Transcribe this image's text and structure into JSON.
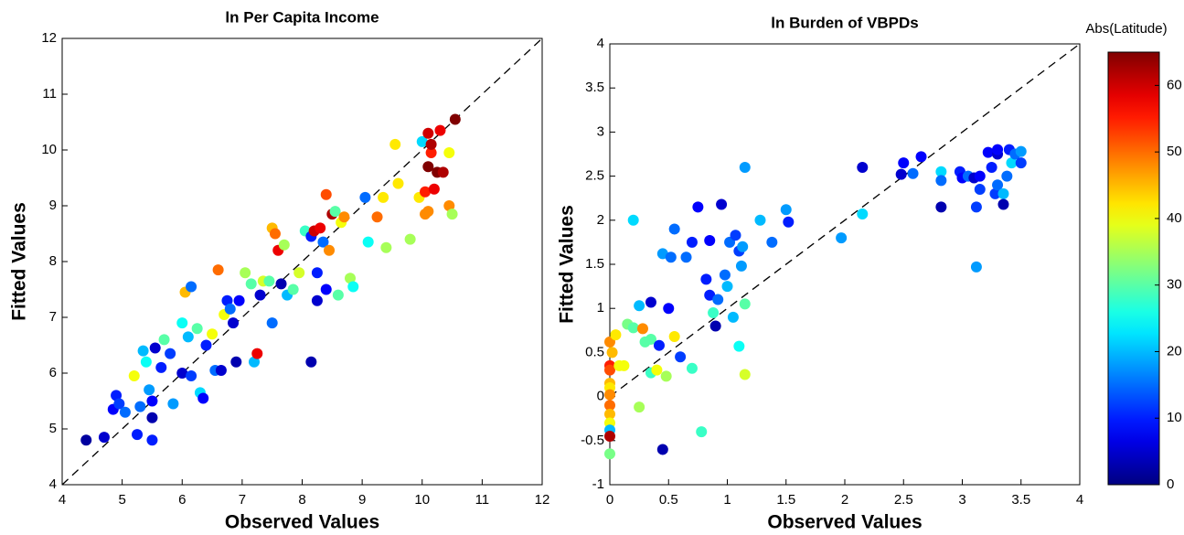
{
  "chart_data": [
    {
      "type": "scatter",
      "title": "ln Per Capita Income",
      "x_label": "Observed Values",
      "y_label": "Fitted Values",
      "xlim": [
        4,
        12
      ],
      "ylim": [
        4,
        12
      ],
      "xticks": [
        4,
        5,
        6,
        7,
        8,
        9,
        10,
        11,
        12
      ],
      "yticks": [
        4,
        5,
        6,
        7,
        8,
        9,
        10,
        11,
        12
      ],
      "identity_line": true,
      "x": [
        4.4,
        4.7,
        4.85,
        4.9,
        4.95,
        5.05,
        5.2,
        5.25,
        5.3,
        5.35,
        5.4,
        5.45,
        5.5,
        5.5,
        5.55,
        5.5,
        5.65,
        5.7,
        5.8,
        5.85,
        6.0,
        6.0,
        6.05,
        6.1,
        6.15,
        6.15,
        6.25,
        6.3,
        6.35,
        6.4,
        6.5,
        6.55,
        6.6,
        6.65,
        6.7,
        6.75,
        6.8,
        6.85,
        6.9,
        6.95,
        7.05,
        7.15,
        7.2,
        7.25,
        7.3,
        7.35,
        7.45,
        7.5,
        7.5,
        7.55,
        7.6,
        7.65,
        7.7,
        7.75,
        7.85,
        7.95,
        8.05,
        8.15,
        8.15,
        8.2,
        8.25,
        8.25,
        8.3,
        8.35,
        8.4,
        8.4,
        8.45,
        8.5,
        8.55,
        8.6,
        8.65,
        8.7,
        8.8,
        8.85,
        9.05,
        9.1,
        9.25,
        9.35,
        9.4,
        9.55,
        9.6,
        9.8,
        9.95,
        10.0,
        10.05,
        10.05,
        10.1,
        10.1,
        10.15,
        10.2,
        10.25,
        10.3,
        10.35,
        10.45,
        10.45,
        10.5,
        10.55,
        10.1,
        10.15
      ],
      "values": [
        4.8,
        4.85,
        5.35,
        5.6,
        5.45,
        5.3,
        5.95,
        4.9,
        5.4,
        6.4,
        6.2,
        5.7,
        5.5,
        4.8,
        6.45,
        5.2,
        6.1,
        6.6,
        6.35,
        5.45,
        6.0,
        6.9,
        7.45,
        6.65,
        7.55,
        5.95,
        6.8,
        5.65,
        5.55,
        6.5,
        6.7,
        6.05,
        7.85,
        6.05,
        7.05,
        7.3,
        7.15,
        6.9,
        6.2,
        7.3,
        7.8,
        7.6,
        6.2,
        6.35,
        7.4,
        7.65,
        7.65,
        8.6,
        6.9,
        8.5,
        8.2,
        7.6,
        8.3,
        7.4,
        7.5,
        7.8,
        8.55,
        8.45,
        6.2,
        8.55,
        7.3,
        7.8,
        8.6,
        8.35,
        7.5,
        9.2,
        8.2,
        8.85,
        8.9,
        7.4,
        8.7,
        8.8,
        7.7,
        7.55,
        9.15,
        8.35,
        8.8,
        9.15,
        8.25,
        10.1,
        9.4,
        8.4,
        9.15,
        10.15,
        8.85,
        9.25,
        10.3,
        8.9,
        9.95,
        9.3,
        9.6,
        10.35,
        9.6,
        9.0,
        9.95,
        8.85,
        10.55,
        9.7,
        10.1
      ],
      "color_values": [
        2,
        5,
        8,
        10,
        12,
        15,
        40,
        10,
        15,
        20,
        25,
        18,
        8,
        10,
        5,
        3,
        10,
        30,
        12,
        18,
        5,
        25,
        45,
        20,
        15,
        12,
        30,
        22,
        8,
        10,
        40,
        15,
        50,
        5,
        40,
        10,
        15,
        5,
        3,
        8,
        35,
        30,
        20,
        58,
        5,
        38,
        30,
        45,
        15,
        50,
        58,
        3,
        35,
        20,
        30,
        38,
        28,
        10,
        3,
        60,
        5,
        10,
        58,
        15,
        8,
        52,
        48,
        62,
        30,
        30,
        40,
        48,
        35,
        25,
        15,
        25,
        50,
        42,
        35,
        42,
        42,
        35,
        42,
        22,
        48,
        55,
        60,
        48,
        55,
        58,
        65,
        58,
        62,
        48,
        40,
        35,
        65,
        65,
        62
      ]
    },
    {
      "type": "scatter",
      "title": "ln Burden of VBPDs",
      "x_label": "Observed Values",
      "y_label": "Fitted Values",
      "xlim": [
        0,
        4
      ],
      "ylim": [
        -1,
        4
      ],
      "xticks": [
        0,
        0.5,
        1,
        1.5,
        2,
        2.5,
        3,
        3.5,
        4
      ],
      "yticks": [
        -1,
        -0.5,
        0,
        0.5,
        1,
        1.5,
        2,
        2.5,
        3,
        3.5,
        4
      ],
      "identity_line": true,
      "x": [
        0,
        0,
        0,
        0,
        0,
        0,
        0,
        0,
        0,
        0,
        0,
        0,
        0.02,
        0.05,
        0.08,
        0.12,
        0.15,
        0.2,
        0.2,
        0.25,
        0.25,
        0.28,
        0.3,
        0.35,
        0.35,
        0.35,
        0.4,
        0.42,
        0.45,
        0.45,
        0.48,
        0.5,
        0.52,
        0.55,
        0.55,
        0.6,
        0.65,
        0.7,
        0.7,
        0.75,
        0.78,
        0.82,
        0.85,
        0.85,
        0.88,
        0.9,
        0.92,
        0.95,
        0.98,
        1.0,
        1.02,
        1.05,
        1.07,
        1.1,
        1.1,
        1.12,
        1.13,
        1.15,
        1.15,
        1.15,
        1.28,
        1.38,
        1.5,
        1.52,
        1.97,
        2.15,
        2.15,
        2.48,
        2.5,
        2.58,
        2.65,
        2.82,
        2.82,
        2.82,
        2.98,
        3.0,
        3.05,
        3.1,
        3.12,
        3.12,
        3.15,
        3.15,
        3.22,
        3.25,
        3.28,
        3.3,
        3.3,
        3.35,
        3.35,
        3.38,
        3.4,
        3.42,
        3.45,
        3.5,
        3.5,
        3.3
      ],
      "values": [
        0.62,
        0.35,
        0.3,
        0.15,
        0.1,
        0.02,
        -0.1,
        -0.2,
        -0.3,
        -0.38,
        -0.45,
        -0.65,
        0.5,
        0.7,
        0.35,
        0.35,
        0.82,
        0.78,
        2.0,
        1.03,
        -0.12,
        0.77,
        0.62,
        0.65,
        0.27,
        1.07,
        0.3,
        0.58,
        1.62,
        -0.6,
        0.23,
        1.0,
        1.58,
        0.68,
        1.9,
        0.45,
        1.58,
        1.75,
        0.32,
        2.15,
        -0.4,
        1.33,
        1.77,
        1.15,
        0.95,
        0.8,
        1.1,
        2.18,
        1.38,
        1.25,
        1.75,
        0.9,
        1.83,
        0.57,
        1.65,
        1.48,
        1.7,
        0.25,
        2.6,
        1.05,
        2.0,
        1.75,
        2.12,
        1.98,
        1.8,
        2.07,
        2.6,
        2.52,
        2.65,
        2.53,
        2.72,
        2.55,
        2.15,
        2.45,
        2.55,
        2.48,
        2.5,
        2.48,
        2.15,
        1.47,
        2.35,
        2.5,
        2.77,
        2.6,
        2.3,
        2.75,
        2.4,
        2.3,
        2.18,
        2.5,
        2.8,
        2.65,
        2.75,
        2.78,
        2.65,
        2.8
      ],
      "color_values": [
        48,
        55,
        52,
        45,
        42,
        48,
        50,
        45,
        40,
        20,
        62,
        32,
        45,
        42,
        40,
        40,
        32,
        30,
        22,
        20,
        35,
        48,
        30,
        30,
        28,
        5,
        40,
        10,
        18,
        3,
        35,
        8,
        15,
        42,
        15,
        12,
        15,
        10,
        28,
        8,
        28,
        10,
        8,
        10,
        28,
        3,
        15,
        5,
        15,
        20,
        15,
        20,
        12,
        25,
        12,
        18,
        18,
        38,
        18,
        30,
        20,
        15,
        18,
        10,
        18,
        22,
        5,
        5,
        8,
        15,
        8,
        22,
        3,
        15,
        10,
        8,
        15,
        5,
        12,
        18,
        12,
        8,
        8,
        10,
        12,
        5,
        15,
        20,
        3,
        15,
        10,
        22,
        15,
        18,
        12,
        8
      ]
    }
  ],
  "colorbar": {
    "label": "Abs(Latitude)",
    "colormap": "jet",
    "lim": [
      0,
      65
    ],
    "ticks": [
      0,
      10,
      20,
      30,
      40,
      50,
      60
    ]
  }
}
